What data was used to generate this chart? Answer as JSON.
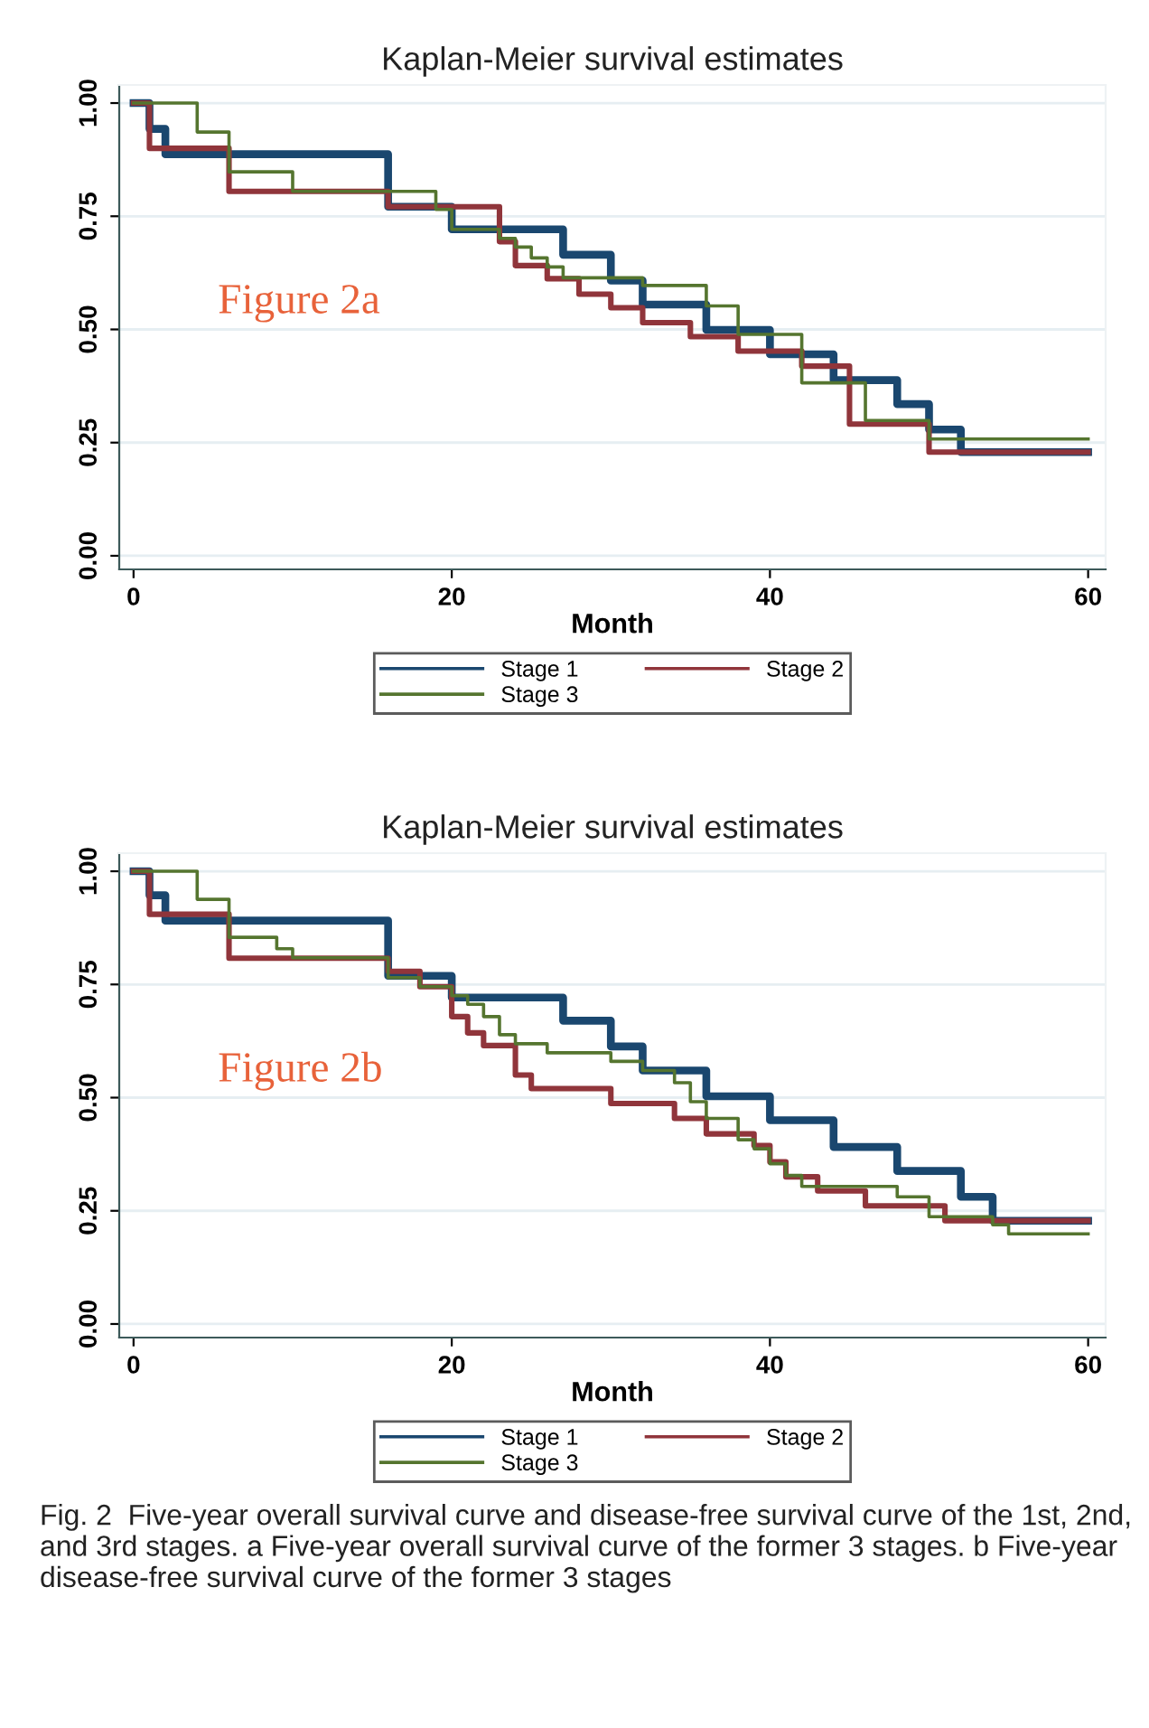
{
  "chart_data": [
    {
      "type": "step",
      "title": "Kaplan-Meier survival estimates",
      "xlabel": "Month",
      "xlim": [
        -0.9,
        61.1
      ],
      "ylim": [
        -0.03,
        1.04
      ],
      "xticks": [
        0,
        20,
        40,
        60
      ],
      "yticks": [
        {
          "value": 0,
          "label": "0.00"
        },
        {
          "value": 0.25,
          "label": "0.25"
        },
        {
          "value": 0.5,
          "label": "0.50"
        },
        {
          "value": 0.75,
          "label": "0.75"
        },
        {
          "value": 1,
          "label": "1.00"
        }
      ],
      "grid": "y",
      "legend": "bottom",
      "line_style": "solid",
      "marker": "none",
      "annotations": [
        "Figure 2a"
      ],
      "series": [
        {
          "name": "Stage 1",
          "color": "#1a476f",
          "x": [
            0,
            1,
            2,
            16,
            20,
            27,
            30,
            32,
            36,
            40,
            44,
            48,
            50,
            52,
            60
          ],
          "values": [
            1.0,
            0.943,
            0.887,
            0.771,
            0.721,
            0.665,
            0.608,
            0.555,
            0.499,
            0.445,
            0.388,
            0.335,
            0.279,
            0.229,
            0.229
          ]
        },
        {
          "name": "Stage 2",
          "color": "#90353b",
          "x": [
            0,
            1,
            6,
            16,
            23,
            24,
            26,
            28,
            30,
            32,
            35,
            38,
            42,
            45,
            50,
            60
          ],
          "values": [
            1.0,
            0.9,
            0.805,
            0.771,
            0.694,
            0.641,
            0.612,
            0.578,
            0.548,
            0.515,
            0.484,
            0.452,
            0.419,
            0.291,
            0.229,
            0.229
          ]
        },
        {
          "name": "Stage 3",
          "color": "#55752f",
          "x": [
            0,
            4,
            6,
            10,
            19,
            20,
            23,
            24,
            25,
            26,
            27,
            32,
            36,
            38,
            42,
            46,
            50,
            60
          ],
          "values": [
            1.0,
            0.936,
            0.848,
            0.805,
            0.765,
            0.721,
            0.701,
            0.682,
            0.658,
            0.638,
            0.614,
            0.597,
            0.552,
            0.489,
            0.382,
            0.299,
            0.258,
            0.258
          ]
        }
      ]
    },
    {
      "type": "step",
      "title": "Kaplan-Meier survival estimates",
      "xlabel": "Month",
      "xlim": [
        -0.9,
        61.1
      ],
      "ylim": [
        -0.03,
        1.04
      ],
      "xticks": [
        0,
        20,
        40,
        60
      ],
      "yticks": [
        {
          "value": 0,
          "label": "0.00"
        },
        {
          "value": 0.25,
          "label": "0.25"
        },
        {
          "value": 0.5,
          "label": "0.50"
        },
        {
          "value": 0.75,
          "label": "0.75"
        },
        {
          "value": 1,
          "label": "1.00"
        }
      ],
      "grid": "y",
      "legend": "bottom",
      "line_style": "solid",
      "marker": "none",
      "annotations": [
        "Figure 2b",
        "Fig. 2  Five-year overall survival curve and disease-free survival curve of the 1st, 2nd, and 3rd stages. a Five-year overall survival curve of the former 3 stages. b Five-year disease-free survival curve of the former 3 stages"
      ],
      "series": [
        {
          "name": "Stage 1",
          "color": "#1a476f",
          "x": [
            0,
            1,
            2,
            16,
            20,
            27,
            30,
            32,
            36,
            40,
            44,
            48,
            52,
            54,
            60
          ],
          "values": [
            1.0,
            0.947,
            0.891,
            0.769,
            0.721,
            0.67,
            0.613,
            0.56,
            0.503,
            0.45,
            0.391,
            0.338,
            0.281,
            0.228,
            0.228
          ]
        },
        {
          "name": "Stage 2",
          "color": "#90353b",
          "x": [
            0,
            1,
            6,
            16,
            18,
            20,
            21,
            22,
            24,
            25,
            30,
            34,
            36,
            39,
            40,
            41,
            43,
            46,
            51,
            60
          ],
          "values": [
            1.0,
            0.905,
            0.808,
            0.779,
            0.745,
            0.679,
            0.643,
            0.615,
            0.55,
            0.52,
            0.487,
            0.454,
            0.42,
            0.394,
            0.358,
            0.325,
            0.294,
            0.261,
            0.228,
            0.228
          ]
        },
        {
          "name": "Stage 3",
          "color": "#55752f",
          "x": [
            0,
            4,
            6,
            9,
            10,
            16,
            18,
            20,
            21,
            22,
            23,
            24,
            26,
            30,
            32,
            34,
            35,
            36,
            38,
            39,
            40,
            41,
            42,
            48,
            50,
            54,
            55,
            60
          ],
          "values": [
            1.0,
            0.938,
            0.854,
            0.829,
            0.809,
            0.765,
            0.745,
            0.725,
            0.706,
            0.679,
            0.639,
            0.619,
            0.599,
            0.58,
            0.56,
            0.533,
            0.491,
            0.454,
            0.407,
            0.387,
            0.354,
            0.328,
            0.304,
            0.281,
            0.237,
            0.219,
            0.199,
            0.199
          ]
        }
      ]
    }
  ]
}
